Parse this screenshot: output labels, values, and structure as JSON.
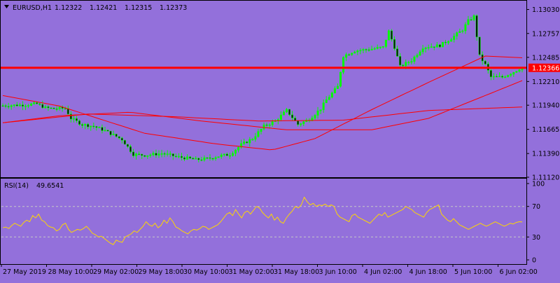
{
  "colors": {
    "background": "#9370DB",
    "axis": "#000000",
    "candle_up": "#00FF00",
    "candle_down": "#000000",
    "ma": "#FF0000",
    "price_line": "#FF0000",
    "rsi": "#FFD700",
    "level_line": "#C8C8C8",
    "price_tag_text": "#FFFFFF"
  },
  "header": {
    "menu_icon": "triangle-down-icon",
    "symbol": "EURUSD,H1",
    "open": "1.12322",
    "high": "1.12421",
    "low": "1.12315",
    "close": "1.12373"
  },
  "chart_data": [
    {
      "type": "candlestick",
      "title": "EURUSD,H1",
      "ylim": [
        1.1112,
        1.1313
      ],
      "y_ticks": [
        1.1303,
        1.12757,
        1.12485,
        1.1221,
        1.1194,
        1.11665,
        1.1139,
        1.1112
      ],
      "y_tick_labels": [
        "1.13030",
        "1.12757",
        "1.12485",
        "1.12210",
        "1.11940",
        "1.11665",
        "1.11390",
        "1.11120"
      ],
      "current_price": 1.12366,
      "current_price_label": "1.12366",
      "x_labels": [
        "27 May 2019",
        "28 May 10:00",
        "29 May 02:00",
        "29 May 18:00",
        "30 May 10:00",
        "31 May 02:00",
        "31 May 18:00",
        "3 Jun 10:00",
        "4 Jun 02:00",
        "4 Jun 18:00",
        "5 Jun 10:00",
        "6 Jun 02:00"
      ],
      "close_profile": [
        [
          0,
          1.11935
        ],
        [
          8,
          1.11945
        ],
        [
          12,
          1.11955
        ],
        [
          15,
          1.1191
        ],
        [
          18,
          1.119
        ],
        [
          22,
          1.11905
        ],
        [
          24,
          1.1179
        ],
        [
          28,
          1.1172
        ],
        [
          32,
          1.117
        ],
        [
          36,
          1.1165
        ],
        [
          42,
          1.1155
        ],
        [
          46,
          1.1138
        ],
        [
          50,
          1.1137
        ],
        [
          56,
          1.1139
        ],
        [
          62,
          1.1135
        ],
        [
          68,
          1.1132
        ],
        [
          72,
          1.1133
        ],
        [
          76,
          1.1136
        ],
        [
          80,
          1.1138
        ],
        [
          84,
          1.1149
        ],
        [
          88,
          1.1156
        ],
        [
          92,
          1.117
        ],
        [
          96,
          1.1176
        ],
        [
          100,
          1.1188
        ],
        [
          104,
          1.1172
        ],
        [
          108,
          1.1178
        ],
        [
          112,
          1.119
        ],
        [
          114,
          1.12
        ],
        [
          118,
          1.1215
        ],
        [
          120,
          1.125
        ],
        [
          124,
          1.1256
        ],
        [
          130,
          1.1258
        ],
        [
          134,
          1.126
        ],
        [
          136,
          1.1278
        ],
        [
          138,
          1.126
        ],
        [
          140,
          1.1238
        ],
        [
          144,
          1.1245
        ],
        [
          148,
          1.126
        ],
        [
          154,
          1.1262
        ],
        [
          158,
          1.127
        ],
        [
          162,
          1.128
        ],
        [
          164,
          1.129
        ],
        [
          166,
          1.1295
        ],
        [
          168,
          1.125
        ],
        [
          170,
          1.124
        ],
        [
          172,
          1.1226
        ],
        [
          176,
          1.1226
        ],
        [
          180,
          1.1232
        ],
        [
          183,
          1.12373
        ]
      ],
      "series": [
        {
          "name": "MA slow",
          "points": [
            [
              0,
              1.1174
            ],
            [
              30,
              1.1184
            ],
            [
              60,
              1.1181
            ],
            [
              90,
              1.1176
            ],
            [
              120,
              1.1177
            ],
            [
              150,
              1.1188
            ],
            [
              183,
              1.1192
            ]
          ]
        },
        {
          "name": "MA mid",
          "points": [
            [
              0,
              1.1174
            ],
            [
              20,
              1.1182
            ],
            [
              45,
              1.1186
            ],
            [
              70,
              1.1176
            ],
            [
              100,
              1.1166
            ],
            [
              130,
              1.1166
            ],
            [
              150,
              1.1179
            ],
            [
              183,
              1.1222
            ]
          ]
        },
        {
          "name": "MA fast",
          "points": [
            [
              0,
              1.1205
            ],
            [
              20,
              1.1193
            ],
            [
              50,
              1.1162
            ],
            [
              75,
              1.115
            ],
            [
              95,
              1.1143
            ],
            [
              110,
              1.1156
            ],
            [
              130,
              1.1189
            ],
            [
              150,
              1.122
            ],
            [
              170,
              1.125
            ],
            [
              183,
              1.1248
            ]
          ]
        }
      ]
    },
    {
      "type": "line",
      "title": "RSI(14)",
      "title_value": "49.6541",
      "ylim": [
        0,
        100
      ],
      "y_ticks": [
        100,
        70,
        30,
        0
      ],
      "y_tick_labels": [
        "100",
        "70",
        "30",
        "0"
      ],
      "levels": [
        70,
        30
      ],
      "values": [
        42,
        43,
        41,
        45,
        48,
        46,
        44,
        49,
        52,
        50,
        58,
        55,
        60,
        52,
        50,
        45,
        43,
        42,
        38,
        40,
        46,
        48,
        40,
        36,
        38,
        40,
        39,
        41,
        44,
        40,
        35,
        33,
        30,
        31,
        28,
        25,
        22,
        20,
        26,
        24,
        23,
        30,
        32,
        34,
        38,
        36,
        40,
        44,
        50,
        46,
        44,
        48,
        42,
        45,
        52,
        48,
        55,
        50,
        43,
        41,
        38,
        36,
        34,
        38,
        40,
        39,
        41,
        44,
        43,
        40,
        42,
        44,
        46,
        50,
        55,
        60,
        62,
        58,
        66,
        60,
        55,
        62,
        64,
        60,
        65,
        70,
        68,
        62,
        58,
        55,
        60,
        52,
        56,
        50,
        48,
        55,
        60,
        64,
        70,
        68,
        72,
        82,
        76,
        72,
        74,
        70,
        72,
        71,
        73,
        70,
        72,
        70,
        60,
        56,
        54,
        52,
        50,
        58,
        60,
        56,
        54,
        52,
        50,
        48,
        52,
        56,
        60,
        58,
        62,
        56,
        58,
        60,
        62,
        64,
        66,
        70,
        68,
        66,
        62,
        60,
        58,
        56,
        62,
        66,
        68,
        70,
        72,
        60,
        56,
        52,
        50,
        54,
        50,
        46,
        44,
        42,
        40,
        42,
        44,
        46,
        48,
        46,
        44,
        46,
        48,
        50,
        48,
        46,
        44,
        46,
        48,
        47,
        49,
        50,
        49.65
      ]
    }
  ]
}
